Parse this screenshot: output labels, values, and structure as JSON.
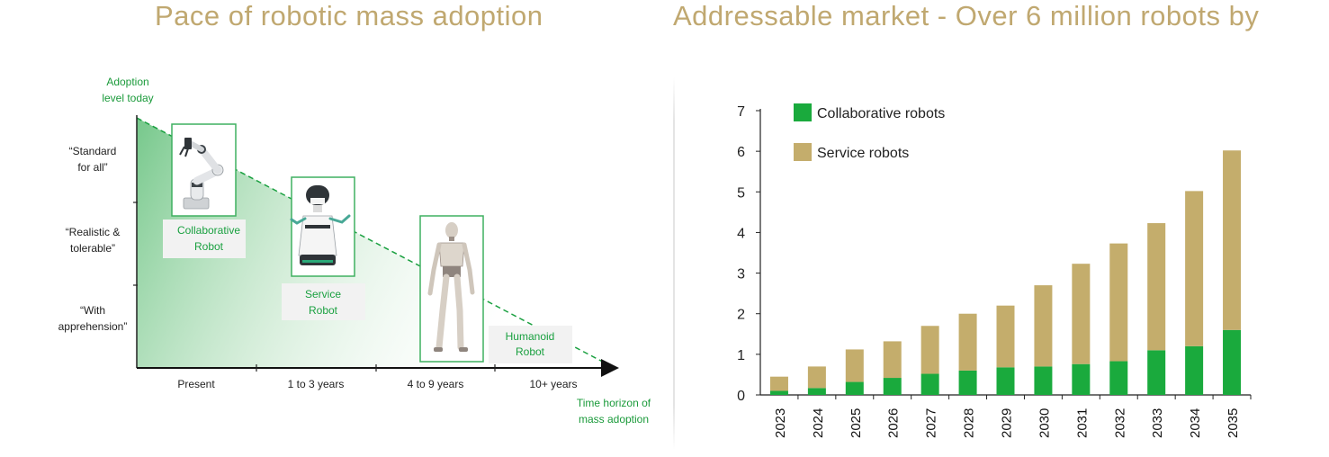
{
  "page": {
    "left_title": "Pace of robotic mass adoption",
    "right_title": "Addressable market - Over 6 million robots by"
  },
  "colors": {
    "title": "#c0a870",
    "adoption_green": "#1aa040",
    "collaborative": "#1aaa3d",
    "service": "#c4ad6c",
    "axis": "#222222"
  },
  "adoption_chart": {
    "y_axis_label": [
      "Adoption",
      "level today"
    ],
    "y_levels": [
      [
        "“Standard",
        "for all”"
      ],
      [
        "“Realistic &",
        "tolerable”"
      ],
      [
        "“With",
        "apprehension”"
      ]
    ],
    "x_categories": [
      "Present",
      "1 to 3 years",
      "4 to 9 years",
      "10+ years"
    ],
    "x_axis_label": [
      "Time horizon of",
      "mass adoption"
    ],
    "robots": [
      {
        "label": [
          "Collaborative",
          "Robot"
        ],
        "icon": "collaborative-robot-arm-icon"
      },
      {
        "label": [
          "Service",
          "Robot"
        ],
        "icon": "service-robot-icon"
      },
      {
        "label": [
          "Humanoid",
          "Robot"
        ],
        "icon": "humanoid-robot-icon"
      }
    ]
  },
  "chart_data": {
    "type": "bar",
    "stacked": true,
    "categories": [
      "2023",
      "2024",
      "2025",
      "2026",
      "2027",
      "2028",
      "2029",
      "2030",
      "2031",
      "2032",
      "2033",
      "2034",
      "2035"
    ],
    "series": [
      {
        "name": "Collaborative robots",
        "color": "#1aaa3d",
        "values": [
          0.1,
          0.17,
          0.32,
          0.42,
          0.52,
          0.6,
          0.68,
          0.7,
          0.76,
          0.83,
          1.1,
          1.2,
          1.6
        ]
      },
      {
        "name": "Service robots",
        "color": "#c4ad6c",
        "values": [
          0.35,
          0.53,
          0.8,
          0.9,
          1.18,
          1.4,
          1.52,
          2.0,
          2.47,
          2.9,
          3.13,
          3.82,
          4.42
        ]
      }
    ],
    "y_ticks": [
      0,
      1,
      2,
      3,
      4,
      5,
      6,
      7
    ],
    "ylim": [
      0,
      7
    ],
    "legend_position": "top-left",
    "grid": false
  }
}
